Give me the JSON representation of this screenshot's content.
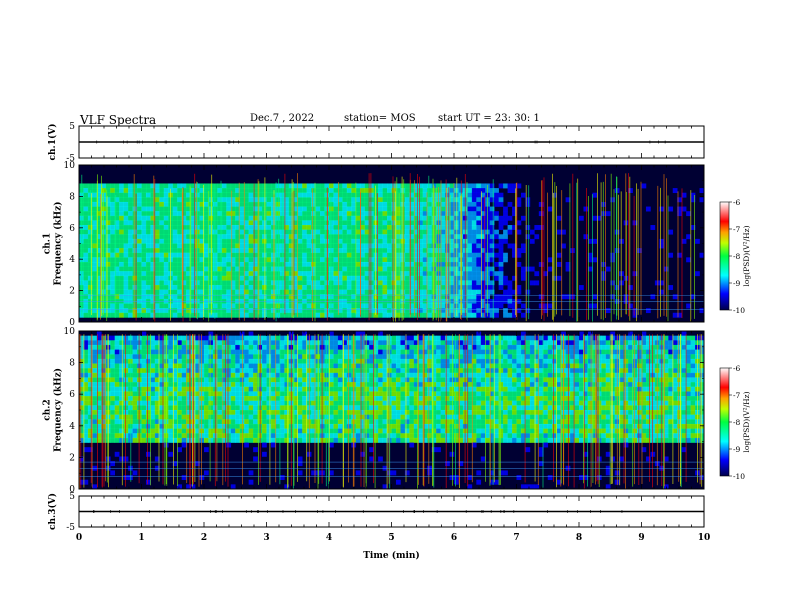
{
  "header": {
    "title": "VLF Spectra",
    "date": "Dec.7 , 2022",
    "station": "station= MOS",
    "start": "start  UT =   23: 30: 1"
  },
  "colors": {
    "colormap": [
      "#00004a",
      "#0000ff",
      "#00a0ff",
      "#00ffff",
      "#00ff80",
      "#80ff00",
      "#ffff00",
      "#ff8000",
      "#ff0000",
      "#ffffff"
    ]
  },
  "chart_data": [
    {
      "type": "line",
      "id": "ch1-wave",
      "ylabel": "ch.1(V)",
      "ylim": [
        -5,
        5
      ],
      "yticks": [
        5,
        -5
      ],
      "xlim": [
        0,
        10
      ],
      "series": [
        {
          "x": [
            0,
            10
          ],
          "y": [
            0,
            0
          ]
        }
      ]
    },
    {
      "type": "heatmap",
      "id": "ch1-spec",
      "ylabel": "ch.1\nFrequency (kHz)",
      "ylim": [
        0,
        10
      ],
      "yticks": [
        0,
        2,
        4,
        6,
        8,
        10
      ],
      "xlim": [
        0,
        10
      ],
      "colorbar": {
        "label": "log(PSD)(V²/Hz)",
        "range": [
          -10,
          -6
        ],
        "ticks": [
          -6,
          -7,
          -8,
          -9,
          -10
        ]
      }
    },
    {
      "type": "heatmap",
      "id": "ch2-spec",
      "ylabel": "ch.2\nFrequency (kHz)",
      "ylim": [
        0,
        10
      ],
      "yticks": [
        0,
        2,
        4,
        6,
        8,
        10
      ],
      "xlim": [
        0,
        10
      ],
      "colorbar": {
        "label": "log(PSD)(V²/Hz)",
        "range": [
          -10,
          -6
        ],
        "ticks": [
          -6,
          -7,
          -8,
          -9,
          -10
        ]
      }
    },
    {
      "type": "line",
      "id": "ch3-wave",
      "ylabel": "ch.3(V)",
      "ylim": [
        -5,
        5
      ],
      "yticks": [
        5,
        -5
      ],
      "xlim": [
        0,
        10
      ],
      "xlabel": "Time (min)",
      "xticks": [
        0,
        1,
        2,
        3,
        4,
        5,
        6,
        7,
        8,
        9,
        10
      ],
      "series": [
        {
          "x": [
            0,
            10
          ],
          "y": [
            0,
            0
          ]
        }
      ]
    }
  ]
}
